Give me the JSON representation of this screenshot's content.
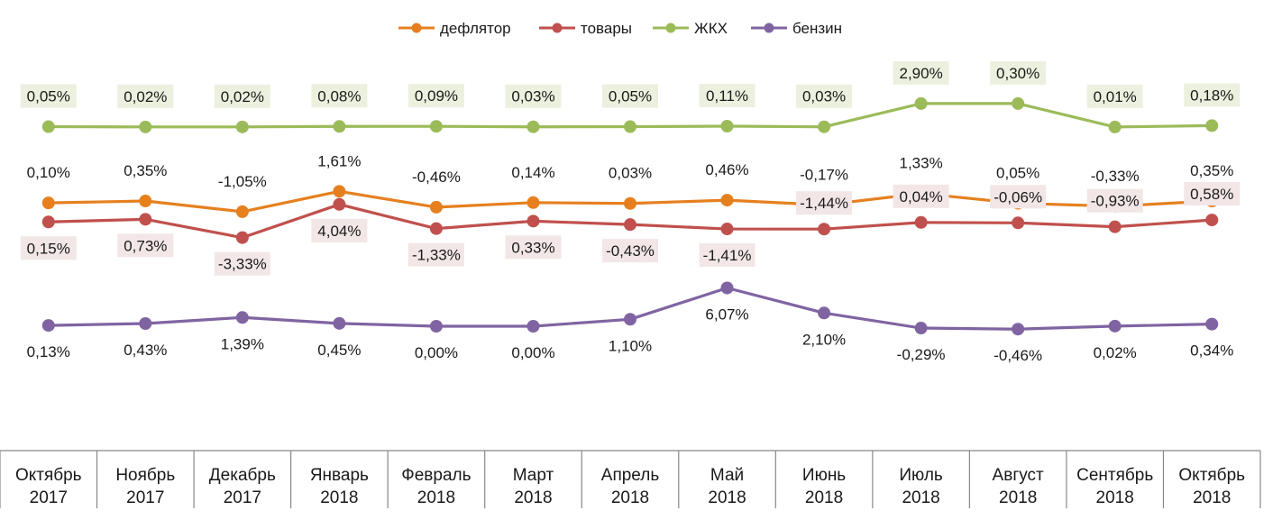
{
  "chart_data": {
    "type": "line",
    "categories": [
      [
        "Октябрь",
        "2017"
      ],
      [
        "Ноябрь",
        "2017"
      ],
      [
        "Декабрь",
        "2017"
      ],
      [
        "Январь",
        "2018"
      ],
      [
        "Февраль",
        "2018"
      ],
      [
        "Март",
        "2018"
      ],
      [
        "Апрель",
        "2018"
      ],
      [
        "Май",
        "2018"
      ],
      [
        "Июнь",
        "2018"
      ],
      [
        "Июль",
        "2018"
      ],
      [
        "Август",
        "2018"
      ],
      [
        "Сентябрь",
        "2018"
      ],
      [
        "Октябрь",
        "2018"
      ]
    ],
    "y_axis_visible": false,
    "grid": false,
    "legend_position": "top",
    "series": [
      {
        "key": "deflator",
        "name": "дефлятор",
        "color": "#e6801f",
        "level": [
          0.1,
          0.35,
          -1.05,
          1.61,
          -0.46,
          0.14,
          0.03,
          0.46,
          -0.17,
          1.33,
          0.05,
          -0.33,
          0.35
        ],
        "labels": [
          "0,10%",
          "0,35%",
          "-1,05%",
          "1,61%",
          "-0,46%",
          "0,14%",
          "0,03%",
          "0,46%",
          "-0,17%",
          "1,33%",
          "0,05%",
          "-0,33%",
          "0,35%"
        ],
        "label_position": "above",
        "label_box": null
      },
      {
        "key": "goods",
        "name": "товары",
        "color": "#c0504d",
        "level": [
          0.15,
          0.73,
          -3.33,
          4.04,
          -1.33,
          0.33,
          -0.43,
          -1.41,
          -1.44,
          0.04,
          -0.06,
          -0.93,
          0.58
        ],
        "labels": [
          "0,15%",
          "0,73%",
          "-3,33%",
          "4,04%",
          "-1,33%",
          "0,33%",
          "-0,43%",
          "-1,41%",
          "-1,44%",
          "0,04%",
          "-0,06%",
          "-0,93%",
          "0,58%"
        ],
        "label_position": "below-first-8-then-above",
        "label_box": "#f2e6e6"
      },
      {
        "key": "housing",
        "name": "ЖКХ",
        "color": "#9bbb59",
        "level": [
          0.05,
          0.02,
          0.02,
          0.08,
          0.09,
          0.03,
          0.05,
          0.11,
          0.03,
          2.9,
          0.3,
          0.01,
          0.18
        ],
        "labels": [
          "0,05%",
          "0,02%",
          "0,02%",
          "0,08%",
          "0,09%",
          "0,03%",
          "0,05%",
          "0,11%",
          "0,03%",
          "2,90%",
          "0,30%",
          "0,01%",
          "0,18%"
        ],
        "label_position": "above",
        "label_box": "#ebf1de"
      },
      {
        "key": "gasoline",
        "name": "бензин",
        "color": "#8064a2",
        "level": [
          0.13,
          0.43,
          1.39,
          0.45,
          0.0,
          0.0,
          1.1,
          6.07,
          2.1,
          -0.29,
          -0.46,
          0.02,
          0.34
        ],
        "labels": [
          "0,13%",
          "0,43%",
          "1,39%",
          "0,45%",
          "0,00%",
          "0,00%",
          "1,10%",
          "6,07%",
          "2,10%",
          "-0,29%",
          "-0,46%",
          "0,02%",
          "0,34%"
        ],
        "label_position": "below",
        "label_box": null
      }
    ]
  }
}
